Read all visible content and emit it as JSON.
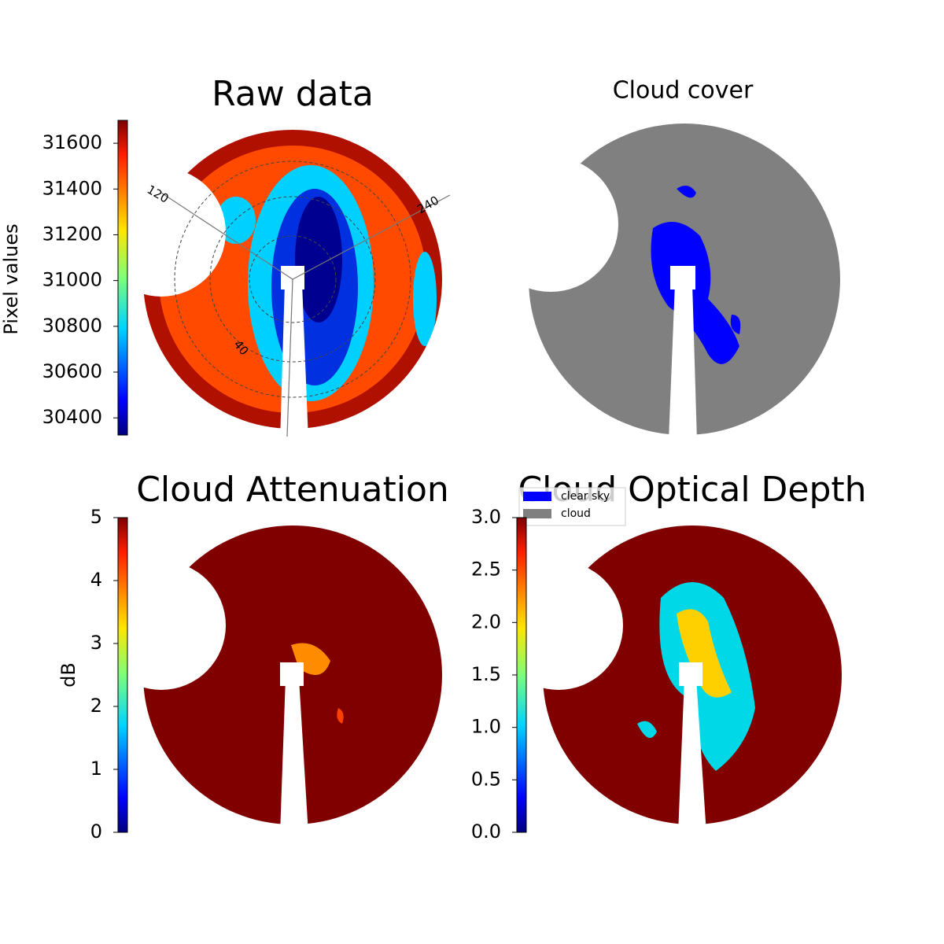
{
  "chart_data": [
    {
      "type": "image",
      "title": "Raw data",
      "colorbar_label": "Pixel values",
      "ylim": [
        30325,
        31700
      ],
      "yticks": [
        30400,
        30600,
        30800,
        31000,
        31200,
        31400,
        31600
      ],
      "annotations": [
        "120",
        "240",
        "40"
      ]
    },
    {
      "type": "image",
      "title": "Cloud cover",
      "legend": [
        {
          "name": "clear sky",
          "color": "#0000ff"
        },
        {
          "name": "cloud",
          "color": "#808080"
        }
      ]
    },
    {
      "type": "image",
      "title": "Cloud Attenuation",
      "colorbar_label": "dB",
      "ylim": [
        0,
        5
      ],
      "yticks": [
        0,
        1,
        2,
        3,
        4,
        5
      ]
    },
    {
      "type": "image",
      "title": "Cloud Optical Depth",
      "ylim": [
        0,
        3
      ],
      "yticks": [
        {
          "value": 0,
          "label": "0.0"
        },
        0.5,
        {
          "value": 1,
          "label": "1.0"
        },
        1.5,
        {
          "value": 2,
          "label": "2.0"
        },
        2.5,
        {
          "value": 3,
          "label": "3.0"
        }
      ]
    }
  ]
}
